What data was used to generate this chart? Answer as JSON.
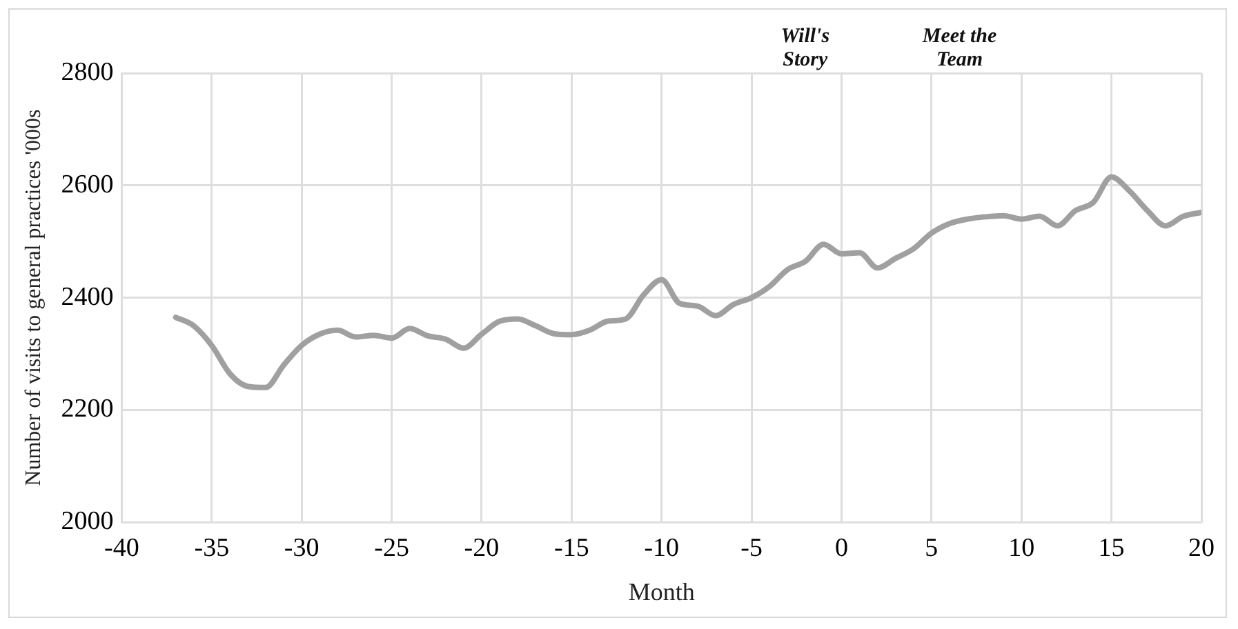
{
  "chart_data": {
    "type": "line",
    "xlabel": "Month",
    "ylabel": "Number of visits to general practices '000s",
    "x": [
      -37,
      -36,
      -35,
      -34,
      -33,
      -32,
      -31,
      -30,
      -29,
      -28,
      -27,
      -26,
      -25,
      -24,
      -23,
      -22,
      -21,
      -20,
      -19,
      -18,
      -17,
      -16,
      -15,
      -14,
      -13,
      -12,
      -11,
      -10,
      -9,
      -8,
      -7,
      -6,
      -5,
      -4,
      -3,
      -2,
      -1,
      0,
      1,
      2,
      3,
      4,
      5,
      6,
      7,
      8,
      9,
      10,
      11,
      12,
      13,
      14,
      15,
      16,
      17,
      18,
      19,
      20
    ],
    "series": [
      {
        "color": "#a0a0a0",
        "values": [
          2365,
          2350,
          2315,
          2265,
          2242,
          2240,
          2280,
          2315,
          2335,
          2342,
          2330,
          2333,
          2328,
          2345,
          2332,
          2326,
          2310,
          2335,
          2358,
          2362,
          2350,
          2336,
          2334,
          2342,
          2358,
          2362,
          2405,
          2432,
          2390,
          2385,
          2368,
          2388,
          2400,
          2420,
          2450,
          2465,
          2495,
          2478,
          2480,
          2453,
          2470,
          2487,
          2515,
          2532,
          2540,
          2544,
          2546,
          2540,
          2545,
          2528,
          2555,
          2570,
          2615,
          2590,
          2555,
          2528,
          2545,
          2552
        ]
      }
    ],
    "xlim": [
      -40,
      20
    ],
    "xticks": [
      -40,
      -35,
      -30,
      -25,
      -20,
      -15,
      -10,
      -5,
      0,
      5,
      10,
      15,
      20
    ],
    "ylim": [
      2000,
      2800
    ],
    "yticks": [
      2000,
      2200,
      2400,
      2600,
      2800
    ],
    "grid": true,
    "legend": false,
    "marker": "none",
    "line_style": "solid",
    "annotations": [
      "Will's\nStory",
      "Meet the\nTeam"
    ]
  }
}
